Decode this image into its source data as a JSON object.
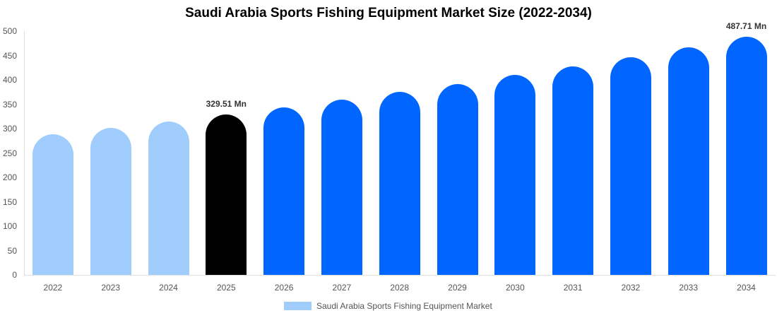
{
  "chart_data": {
    "type": "bar",
    "title": "Saudi Arabia Sports Fishing Equipment Market Size (2022-2034)",
    "xlabel": "",
    "ylabel": "",
    "ylim": [
      0,
      500
    ],
    "yticks": [
      0,
      50,
      100,
      150,
      200,
      250,
      300,
      350,
      400,
      450,
      500
    ],
    "grid": false,
    "legend_position": "bottom",
    "categories": [
      "2022",
      "2023",
      "2024",
      "2025",
      "2026",
      "2027",
      "2028",
      "2029",
      "2030",
      "2031",
      "2032",
      "2033",
      "2034"
    ],
    "series": [
      {
        "name": "Saudi Arabia Sports Fishing Equipment Market",
        "values": [
          288,
          301,
          314,
          329.51,
          343,
          359,
          375,
          391,
          410,
          428,
          446,
          467,
          487.71
        ]
      }
    ],
    "bar_colors": [
      "#a0cdfb",
      "#a0cdfb",
      "#a0cdfb",
      "#000000",
      "#0066ff",
      "#0066ff",
      "#0066ff",
      "#0066ff",
      "#0066ff",
      "#0066ff",
      "#0066ff",
      "#0066ff",
      "#0066ff"
    ],
    "annotations": [
      {
        "category": "2025",
        "label": "329.51 Mn"
      },
      {
        "category": "2034",
        "label": "487.71 Mn"
      }
    ]
  },
  "legend": {
    "label": "Saudi Arabia Sports Fishing Equipment Market",
    "color": "#a0cdfb"
  }
}
